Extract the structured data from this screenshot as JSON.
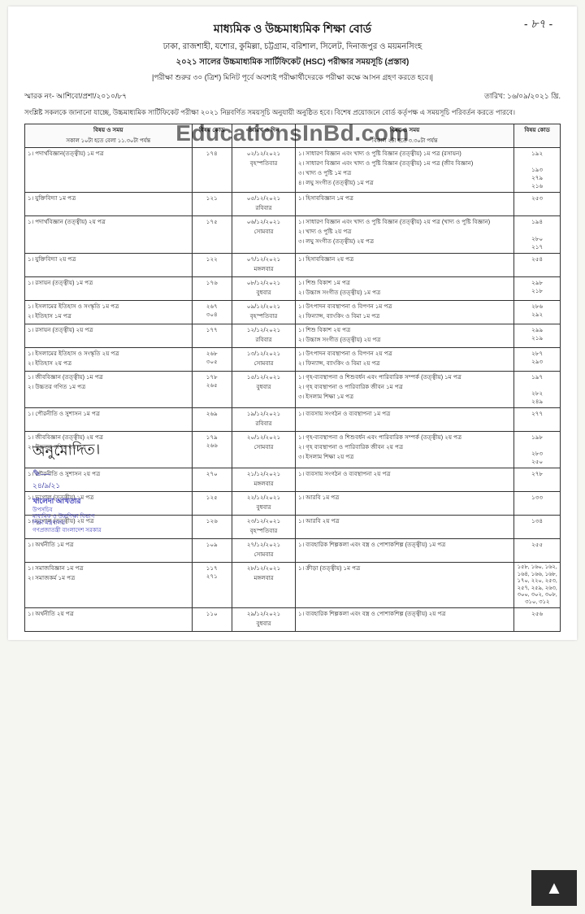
{
  "pageNumber": "- ৮৭ -",
  "header": {
    "title": "মাধ্যমিক ও উচ্চমাধ্যমিক শিক্ষা বোর্ড",
    "boards": "ঢাকা, রাজশাহী, যশোর, কুমিল্লা, চট্টগ্রাম, বরিশাল, সিলেট, দিনাজপুর ও ময়মনসিংহ",
    "examLine": "২০২১ সালের উচ্চমাধ্যমিক সার্টিফিকেট (HSC) পরীক্ষার সময়সূচি (প্রস্তাব)",
    "instruction": "|পরীক্ষা শুরুর ৩০ (ত্রিশ) মিনিট পূর্বে অবশ্যই পরীক্ষার্থীদেরকে পরীক্ষা কক্ষে আসন গ্রহণ করতে হবে।|"
  },
  "watermark": "EducationsInBd.com",
  "memo": {
    "left": "স্মারক নং- আশিবো/প্রশা/২০১০/৮৭",
    "right": "তারিখ: ১৬/০৯/২০২১ খ্রি."
  },
  "notice": "সংশ্লিষ্ট সকলকে জানানো যাচ্ছে, উচ্চমাধ্যমিক সার্টিফিকেট পরীক্ষা ২০২১ নিম্নবর্ণিত সময়সূচি অনুযায়ী অনুষ্ঠিত হবে। বিশেষ প্রয়োজনে বোর্ড কর্তৃপক্ষ এ সময়সূচি পরিবর্তন করতে পারবে।",
  "columns": {
    "morningHead": "বিষয় ও সময়",
    "morningSub": "সকাল ১০টা হতে বেলা ১১.৩০টা পর্যন্ত",
    "codeHead": "বিষয় কোড",
    "dateHead": "তারিখ ও দিন",
    "afternoonHead": "বিষয় ও সময়",
    "afternoonSub": "বিকাল ২টা হতে ৩.৩০টা পর্যন্ত",
    "code2Head": "বিষয় কোড"
  },
  "rows": [
    {
      "morning": "১।  পদার্থবিজ্ঞান(তত্ত্বীয়) ১ম পত্র",
      "codeM": "১৭৪",
      "date": "০২/১২/২০২১\nবৃহস্পতিবার",
      "afternoon": "১।  সাধারণ বিজ্ঞান এবং খাদ্য ও পুষ্টি বিজ্ঞান (তত্ত্বীয়) ১ম পত্র (রসায়ন)\n২।  সাধারণ বিজ্ঞান এবং খাদ্য ও পুষ্টি বিজ্ঞান (তত্ত্বীয়) ১ম পত্র (জীব বিজ্ঞান)\n৩।  খাদ্য ও পুষ্টি ১ম পত্র\n৪।  লঘু সংগীত (তত্ত্বীয়) ১ম পত্র",
      "codeA": "১৯২\n\n১৯৩\n২৭৯\n২১৬"
    },
    {
      "morning": "১।  যুক্তিবিদ্যা ১ম পত্র",
      "codeM": "১২১",
      "date": "০৫/১২/২০২১\nরবিবার",
      "afternoon": "১।  হিসাববিজ্ঞান ১ম পত্র",
      "codeA": "২৫৩"
    },
    {
      "morning": "১।  পদার্থবিজ্ঞান (তত্ত্বীয়) ২য় পত্র",
      "codeM": "১৭৫",
      "date": "০৬/১২/২০২১\nসোমবার",
      "afternoon": "১।  সাধারণ বিজ্ঞান এবং খাদ্য ও পুষ্টি বিজ্ঞান (তত্ত্বীয়) ২য় পত্র  (খাদ্য ও পুষ্টি বিজ্ঞান)\n২।  খাদ্য ও পুষ্টি ২য় পত্র\n৩।  লঘু সংগীত (তত্ত্বীয়) ২য় পত্র",
      "codeA": "১৯৪\n\n২৮০\n২১৭"
    },
    {
      "morning": "১।  যুক্তিবিদ্যা ২য় পত্র",
      "codeM": "১২২",
      "date": "০৭/১২/২০২১\nমঙ্গলবার",
      "afternoon": "১।  হিসাববিজ্ঞান ২য় পত্র",
      "codeA": "২৫৪"
    },
    {
      "morning": "১।  রসায়ন (তত্ত্বীয়) ১ম পত্র",
      "codeM": "১৭৬",
      "date": "০৮/১২/২০২১\nবুধবার",
      "afternoon": "১।  শিশু বিকাশ ১ম পত্র\n২।  উচ্চাঙ্গ সংগীত (তত্ত্বীয়) ১ম পত্র",
      "codeA": "২৯৮\n২১৮"
    },
    {
      "morning": "১।  ইসলামের ইতিহাস ও সংস্কৃতি ১ম পত্র\n২।  ইতিহাস ১ম পত্র",
      "codeM": "২৬৭\n৩০৪",
      "date": "০৯/১২/২০২১\nবৃহস্পতিবার",
      "afternoon": "১।  উৎপাদন ব্যবস্থাপনা ও বিপণন ১ম পত্র\n২।  ফিন্যান্স, ব্যাংকিং ও বিমা ১ম পত্র",
      "codeA": "২৮৬\n২৯২"
    },
    {
      "morning": "১।  রসায়ন (তত্ত্বীয়) ২য় পত্র",
      "codeM": "১৭৭",
      "date": "১২/১২/২০২১\nরবিবার",
      "afternoon": "১।  শিশু বিকাশ ২য় পত্র\n২।  উচ্চাঙ্গ সংগীত (তত্ত্বীয়) ২য় পত্র",
      "codeA": "২৯৯\n২১৯"
    },
    {
      "morning": "১।  ইসলামের ইতিহাস ও সংস্কৃতি ২য় পত্র\n২।  ইতিহাস ২য় পত্র",
      "codeM": "২৬৮\n৩০৫",
      "date": "১৩/১২/২০২১\nসোমবার",
      "afternoon": "১।  উৎপাদন ব্যবস্থাপনা ও বিপণন ২য় পত্র\n২।  ফিন্যান্স, ব্যাংকিং ও বিমা ২য় পত্র",
      "codeA": "২৮৭\n২৯৩"
    },
    {
      "morning": "১।  জীববিজ্ঞান (তত্ত্বীয়) ১ম পত্র\n২।  উচ্চতর গণিত ১ম পত্র",
      "codeM": "১৭৮\n২৬৫",
      "date": "১৫/১২/২০২১\nবুধবার",
      "afternoon": "১।  গৃহ-ব্যবস্থাপনা ও শিশুবর্ধন এবং পারিবারিক সম্পর্ক (তত্ত্বীয়) ১ম পত্র\n২।  গৃহ ব্যবস্থাপনা ও পারিবারিক জীবন ১ম পত্র\n৩।  ইসলাম শিক্ষা ১ম পত্র",
      "codeA": "১৯৭\n\n২৮২\n২৪৯"
    },
    {
      "morning": "১।  পৌরনীতি ও সুশাসন ১ম পত্র",
      "codeM": "২৬৯",
      "date": "১৯/১২/২০২১\nরবিবার",
      "afternoon": "১।  ব্যবসায় সংগঠন ও ব্যবস্থাপনা ১ম পত্র",
      "codeA": "২৭৭"
    },
    {
      "morning": "১।  জীববিজ্ঞান (তত্ত্বীয়) ২য় পত্র\n২।  উচ্চতর গণিত ২য় পত্র",
      "codeM": "১৭৯\n২৬৬",
      "date": "২০/১২/২০২১\nসোমবার",
      "afternoon": "১।  গৃহ-ব্যবস্থাপনা ও শিশুবর্ধন এবং পারিবারিক সম্পর্ক (তত্ত্বীয়) ২য় পত্র\n২।  গৃহ ব্যবস্থাপনা ও পারিবারিক জীবন ২য় পত্র\n৩।  ইসলাম শিক্ষা ২য় পত্র",
      "codeA": "১৯৮\n\n২৮৩\n২৫০"
    },
    {
      "morning": "১।  পৌরনীতি ও সুশাসন ২য় পত্র",
      "codeM": "২৭০",
      "date": "২১/১২/২০২১\nমঙ্গলবার",
      "afternoon": "১।  ব্যবসায় সংগঠন ও ব্যবস্থাপনা ২য় পত্র",
      "codeA": "২৭৮"
    },
    {
      "morning": "১।  ভূগোল (তত্ত্বীয়) ১ম পত্র",
      "codeM": "১২৫",
      "date": "২২/১২/২০২১\nবুধবার",
      "afternoon": "১।  আরবি ১ম পত্র",
      "codeA": "১৩৩"
    },
    {
      "morning": "১।  ভূগোল (তত্ত্বীয়) ২য় পত্র",
      "codeM": "১২৬",
      "date": "২৩/১২/২০২১\nবৃহস্পতিবার",
      "afternoon": "১।  আরবি ২য় পত্র",
      "codeA": "১৩৪"
    },
    {
      "morning": "১।  অর্থনীতি ১ম পত্র",
      "codeM": "১০৯",
      "date": "২৭/১২/২০২১\nসোমবার",
      "afternoon": "১।  ব্যবহারিক শিল্পকলা এবং বস্ত্র ও পোশাকশিল্প (তত্ত্বীয়) ১ম পত্র",
      "codeA": "২৫৫"
    },
    {
      "morning": "১।  সমাজবিজ্ঞান ১ম পত্র\n২।  সমাজকর্ম ১ম পত্র",
      "codeM": "১১৭\n২৭১",
      "date": "২৮/১২/২০২১\nমঙ্গলবার",
      "afternoon": "১।  ক্রীড়া (তত্ত্বীয়) ১ম পত্র",
      "codeA": "১৫৮, ১৬০, ১৬২, ১৬৪, ১৬৬, ১৬৮, ১৭০, ২২০, ২৫৩, ২৫৭, ২৫৯, ২৬৩, ৩০০, ৩০২, ৩০৮, ৩১০, ৩১২",
      "manyCodes": true
    },
    {
      "morning": "১।  অর্থনীতি ২য় পত্র",
      "codeM": "১১০",
      "date": "২৯/১২/২০২১\nবুধবার",
      "afternoon": "১।  ব্যবহারিক শিল্পকলা এবং বস্ত্র ও পোশাকশিল্প (তত্ত্বীয়) ২য় পত্র",
      "codeA": "২৫৬"
    }
  ],
  "signature": {
    "approved": "অনুমোদিত।",
    "sigDate": "২৪/৯/২১",
    "name": "খালেদা আখতার",
    "desig1": "উপসচিব",
    "desig2": "মাধ্যমিক ও উচ্চশিক্ষা বিভাগ",
    "desig3": "শিক্ষা মন্ত্রণালয়",
    "desig4": "গণপ্রজাতন্ত্রী বাংলাদেশ সরকার"
  },
  "scrollTop": "▲"
}
